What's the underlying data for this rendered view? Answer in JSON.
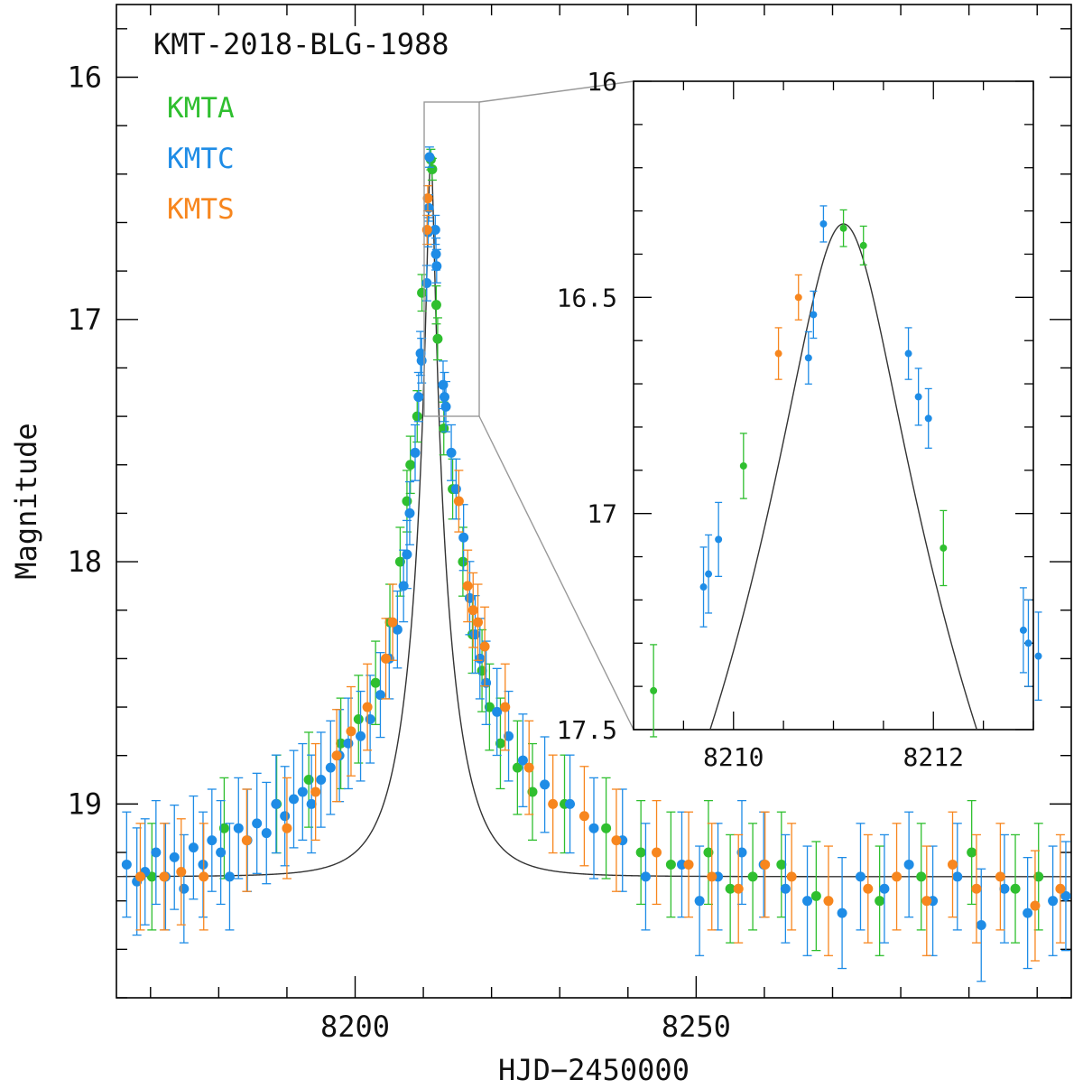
{
  "chart_data": [
    {
      "type": "scatter",
      "title": "KMT-2018-BLG-1988",
      "xlabel": "HJD−2450000",
      "ylabel": "Magnitude",
      "xlim": [
        8165,
        8305
      ],
      "ylim": [
        19.8,
        15.7
      ],
      "y_inverted": true,
      "x_major_ticks": [
        8200,
        8250
      ],
      "x_minor_step": 10,
      "y_major_ticks": [
        16,
        17,
        18,
        19
      ],
      "y_minor_step": 0.2,
      "legend": [
        {
          "name": "KMTA",
          "color": "#2fbf2f"
        },
        {
          "name": "KMTC",
          "color": "#1e8ce6"
        },
        {
          "name": "KMTS",
          "color": "#f7861e"
        }
      ],
      "legend_position": "top-left",
      "model_curve": {
        "color": "#333333",
        "t0": 8211.1,
        "peak_mag": 16.33,
        "baseline_mag": 19.3,
        "tE": 6,
        "u0": 0.082
      },
      "series": [
        {
          "name": "KMTA",
          "color": "#2fbf2f",
          "points": [
            [
              8170.2,
              19.3
            ],
            [
              8180.8,
              19.1
            ],
            [
              8188.5,
              19.0
            ],
            [
              8193.2,
              18.9
            ],
            [
              8197.9,
              18.75
            ],
            [
              8200.5,
              18.65
            ],
            [
              8203.0,
              18.5
            ],
            [
              8205.1,
              18.25
            ],
            [
              8206.6,
              18.0
            ],
            [
              8207.6,
              17.75
            ],
            [
              8208.1,
              17.6
            ],
            [
              8209.1,
              17.4
            ],
            [
              8209.8,
              16.89
            ],
            [
              8211.1,
              16.34
            ],
            [
              8211.3,
              16.38
            ],
            [
              8211.9,
              16.94
            ],
            [
              8212.1,
              17.08
            ],
            [
              8213.0,
              17.45
            ],
            [
              8214.3,
              17.7
            ],
            [
              8215.8,
              18.0
            ],
            [
              8217.2,
              18.3
            ],
            [
              8218.6,
              18.45
            ],
            [
              8219.7,
              18.6
            ],
            [
              8221.3,
              18.75
            ],
            [
              8223.8,
              18.85
            ],
            [
              8226.0,
              18.95
            ],
            [
              8230.7,
              19.0
            ],
            [
              8236.8,
              19.1
            ],
            [
              8241.9,
              19.2
            ],
            [
              8246.3,
              19.25
            ],
            [
              8251.8,
              19.2
            ],
            [
              8255.0,
              19.35
            ],
            [
              8258.3,
              19.3
            ],
            [
              8262.5,
              19.25
            ],
            [
              8267.6,
              19.38
            ],
            [
              8276.9,
              19.4
            ],
            [
              8283.0,
              19.3
            ],
            [
              8290.4,
              19.2
            ],
            [
              8296.8,
              19.35
            ],
            [
              8300.2,
              19.3
            ]
          ]
        },
        {
          "name": "KMTC",
          "color": "#1e8ce6",
          "points": [
            [
              8166.5,
              19.25
            ],
            [
              8168.0,
              19.32
            ],
            [
              8169.2,
              19.28
            ],
            [
              8170.8,
              19.2
            ],
            [
              8172.2,
              19.3
            ],
            [
              8173.5,
              19.22
            ],
            [
              8174.9,
              19.35
            ],
            [
              8176.3,
              19.18
            ],
            [
              8177.7,
              19.25
            ],
            [
              8179.0,
              19.15
            ],
            [
              8180.3,
              19.2
            ],
            [
              8181.6,
              19.3
            ],
            [
              8182.9,
              19.1
            ],
            [
              8184.2,
              19.15
            ],
            [
              8185.6,
              19.08
            ],
            [
              8187.0,
              19.12
            ],
            [
              8188.4,
              19.0
            ],
            [
              8189.7,
              19.05
            ],
            [
              8191.0,
              18.98
            ],
            [
              8192.3,
              18.95
            ],
            [
              8193.6,
              19.0
            ],
            [
              8195.0,
              18.9
            ],
            [
              8196.4,
              18.85
            ],
            [
              8197.7,
              18.8
            ],
            [
              8199.0,
              18.75
            ],
            [
              8200.8,
              18.72
            ],
            [
              8202.2,
              18.65
            ],
            [
              8203.7,
              18.55
            ],
            [
              8205.0,
              18.4
            ],
            [
              8206.2,
              18.28
            ],
            [
              8207.1,
              18.1
            ],
            [
              8207.6,
              17.97
            ],
            [
              8208.0,
              17.8
            ],
            [
              8208.8,
              17.55
            ],
            [
              8209.3,
              17.32
            ],
            [
              8209.6,
              17.14
            ],
            [
              8209.75,
              17.17
            ],
            [
              8210.5,
              16.85
            ],
            [
              8210.7,
              16.64
            ],
            [
              8210.8,
              16.54
            ],
            [
              8210.9,
              16.33
            ],
            [
              8211.75,
              16.63
            ],
            [
              8211.85,
              16.73
            ],
            [
              8211.95,
              16.78
            ],
            [
              8212.9,
              17.27
            ],
            [
              8213.1,
              17.32
            ],
            [
              8213.3,
              17.36
            ],
            [
              8214.1,
              17.55
            ],
            [
              8214.8,
              17.7
            ],
            [
              8215.9,
              17.9
            ],
            [
              8216.8,
              18.15
            ],
            [
              8217.6,
              18.3
            ],
            [
              8218.3,
              18.4
            ],
            [
              8219.2,
              18.5
            ],
            [
              8220.8,
              18.62
            ],
            [
              8222.5,
              18.72
            ],
            [
              8224.6,
              18.82
            ],
            [
              8227.8,
              18.92
            ],
            [
              8231.5,
              19.0
            ],
            [
              8235.0,
              19.1
            ],
            [
              8239.2,
              19.15
            ],
            [
              8242.6,
              19.3
            ],
            [
              8247.9,
              19.25
            ],
            [
              8250.5,
              19.4
            ],
            [
              8253.2,
              19.3
            ],
            [
              8256.7,
              19.2
            ],
            [
              8259.9,
              19.25
            ],
            [
              8263.1,
              19.35
            ],
            [
              8266.3,
              19.4
            ],
            [
              8271.4,
              19.45
            ],
            [
              8274.1,
              19.3
            ],
            [
              8277.6,
              19.35
            ],
            [
              8281.2,
              19.25
            ],
            [
              8284.7,
              19.4
            ],
            [
              8288.3,
              19.3
            ],
            [
              8291.8,
              19.5
            ],
            [
              8295.2,
              19.35
            ],
            [
              8298.6,
              19.45
            ],
            [
              8302.3,
              19.4
            ],
            [
              8304.2,
              19.38
            ]
          ]
        },
        {
          "name": "KMTS",
          "color": "#f7861e",
          "points": [
            [
              8168.5,
              19.3
            ],
            [
              8172.0,
              19.3
            ],
            [
              8174.5,
              19.28
            ],
            [
              8177.8,
              19.3
            ],
            [
              8184.1,
              19.15
            ],
            [
              8190.0,
              19.1
            ],
            [
              8194.2,
              18.95
            ],
            [
              8197.3,
              18.8
            ],
            [
              8199.4,
              18.7
            ],
            [
              8201.8,
              18.6
            ],
            [
              8204.5,
              18.4
            ],
            [
              8205.5,
              18.25
            ],
            [
              8210.55,
              16.63
            ],
            [
              8210.65,
              16.5
            ],
            [
              8215.2,
              17.75
            ],
            [
              8216.5,
              18.1
            ],
            [
              8217.3,
              18.2
            ],
            [
              8218.0,
              18.25
            ],
            [
              8219.0,
              18.35
            ],
            [
              8222.0,
              18.6
            ],
            [
              8225.5,
              18.85
            ],
            [
              8229.0,
              19.0
            ],
            [
              8233.6,
              19.05
            ],
            [
              8238.3,
              19.15
            ],
            [
              8244.2,
              19.2
            ],
            [
              8248.9,
              19.25
            ],
            [
              8252.3,
              19.3
            ],
            [
              8256.2,
              19.35
            ],
            [
              8260.1,
              19.25
            ],
            [
              8264.0,
              19.3
            ],
            [
              8269.4,
              19.4
            ],
            [
              8275.2,
              19.35
            ],
            [
              8279.4,
              19.3
            ],
            [
              8283.8,
              19.4
            ],
            [
              8287.6,
              19.25
            ],
            [
              8291.1,
              19.35
            ],
            [
              8294.6,
              19.3
            ],
            [
              8299.7,
              19.42
            ],
            [
              8303.4,
              19.35
            ]
          ]
        }
      ]
    },
    {
      "type": "scatter",
      "title": "",
      "xlim": [
        8209,
        8213
      ],
      "ylim": [
        17.5,
        16
      ],
      "y_inverted": true,
      "x_major_ticks": [
        8210,
        8212
      ],
      "y_major_ticks": [
        16,
        16.5,
        17,
        17.5
      ],
      "y_tick_labels": [
        "16",
        "16.5",
        "17",
        "17.5"
      ],
      "inset_region": {
        "x": [
          8209,
          8213
        ],
        "y": [
          16.1,
          17.4
        ]
      },
      "series": [
        {
          "name": "KMTA",
          "color": "#2fbf2f",
          "points": [
            [
              8209.2,
              17.41
            ],
            [
              8210.1,
              16.89
            ],
            [
              8211.1,
              16.34
            ],
            [
              8211.3,
              16.38
            ],
            [
              8212.1,
              17.08
            ]
          ]
        },
        {
          "name": "KMTC",
          "color": "#1e8ce6",
          "points": [
            [
              8209.7,
              17.17
            ],
            [
              8209.75,
              17.14
            ],
            [
              8209.85,
              17.06
            ],
            [
              8210.75,
              16.64
            ],
            [
              8210.8,
              16.54
            ],
            [
              8210.9,
              16.33
            ],
            [
              8211.75,
              16.63
            ],
            [
              8211.85,
              16.73
            ],
            [
              8211.95,
              16.78
            ],
            [
              8212.9,
              17.27
            ],
            [
              8212.95,
              17.3
            ],
            [
              8213.05,
              17.33
            ]
          ]
        },
        {
          "name": "KMTS",
          "color": "#f7861e",
          "points": [
            [
              8210.45,
              16.63
            ],
            [
              8210.65,
              16.5
            ]
          ]
        }
      ]
    }
  ]
}
